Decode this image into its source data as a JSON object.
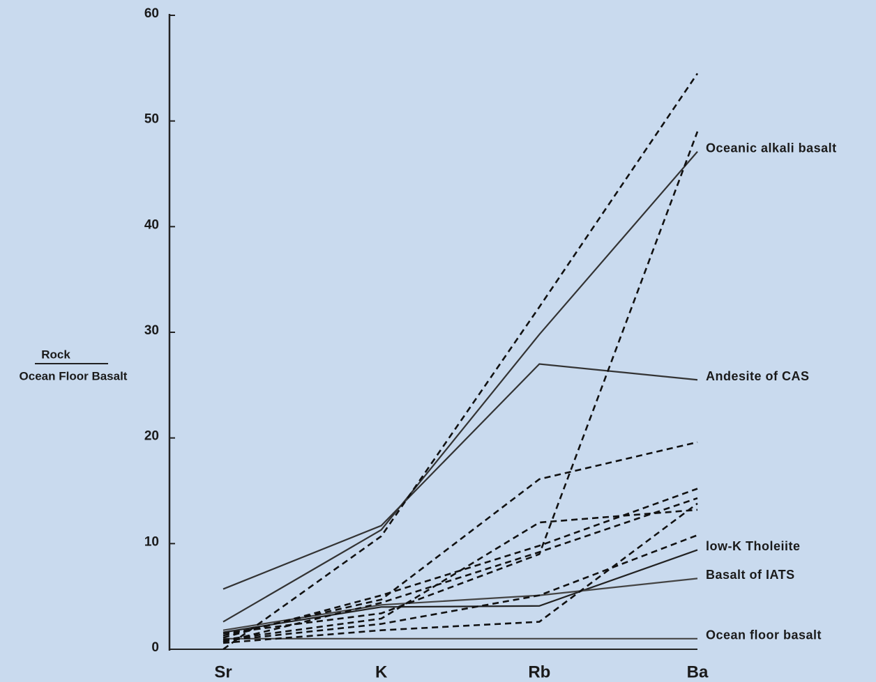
{
  "chart_data": {
    "type": "line",
    "y_label_numerator": "Rock",
    "y_label_denominator": "Ocean Floor Basalt",
    "categories": [
      "Sr",
      "K",
      "Rb",
      "Ba"
    ],
    "ylim": [
      0,
      60
    ],
    "yticks": [
      0,
      10,
      20,
      30,
      40,
      50,
      60
    ],
    "series": [
      {
        "name": "Oceanic alkali basalt",
        "color": "#333333",
        "dashed": false,
        "values": [
          2.6,
          11.3,
          29.8,
          47.1
        ]
      },
      {
        "name": "Andesite of CAS",
        "color": "#333333",
        "dashed": false,
        "values": [
          5.7,
          11.7,
          27.0,
          25.5
        ]
      },
      {
        "name": "low-K Tholeiite",
        "color": "#222222",
        "dashed": false,
        "values": [
          1.6,
          4.0,
          4.1,
          9.4
        ]
      },
      {
        "name": "Basalt of IATS",
        "color": "#444444",
        "dashed": false,
        "values": [
          1.8,
          4.2,
          5.1,
          6.7
        ]
      },
      {
        "name": "Ocean floor basalt",
        "color": "#444444",
        "dashed": false,
        "values": [
          1,
          1,
          1,
          1
        ]
      },
      {
        "color": "#111111",
        "dashed": true,
        "values": [
          0,
          10.7,
          32.4,
          54.5
        ]
      },
      {
        "color": "#111111",
        "dashed": true,
        "values": [
          1.5,
          3.4,
          9.0,
          49
        ]
      },
      {
        "color": "#111111",
        "dashed": true,
        "values": [
          1.3,
          4.7,
          16.1,
          19.6
        ]
      },
      {
        "color": "#111111",
        "dashed": true,
        "values": [
          1.1,
          5.1,
          9.8,
          15.2
        ]
      },
      {
        "color": "#111111",
        "dashed": true,
        "values": [
          0.9,
          2.9,
          12.0,
          13.2
        ]
      },
      {
        "color": "#111111",
        "dashed": true,
        "values": [
          0.7,
          4.4,
          9.2,
          14.3
        ]
      },
      {
        "color": "#111111",
        "dashed": true,
        "values": [
          0.6,
          1.8,
          2.6,
          13.8
        ]
      },
      {
        "color": "#111111",
        "dashed": true,
        "values": [
          0.8,
          2.4,
          5.1,
          10.8
        ]
      }
    ]
  }
}
